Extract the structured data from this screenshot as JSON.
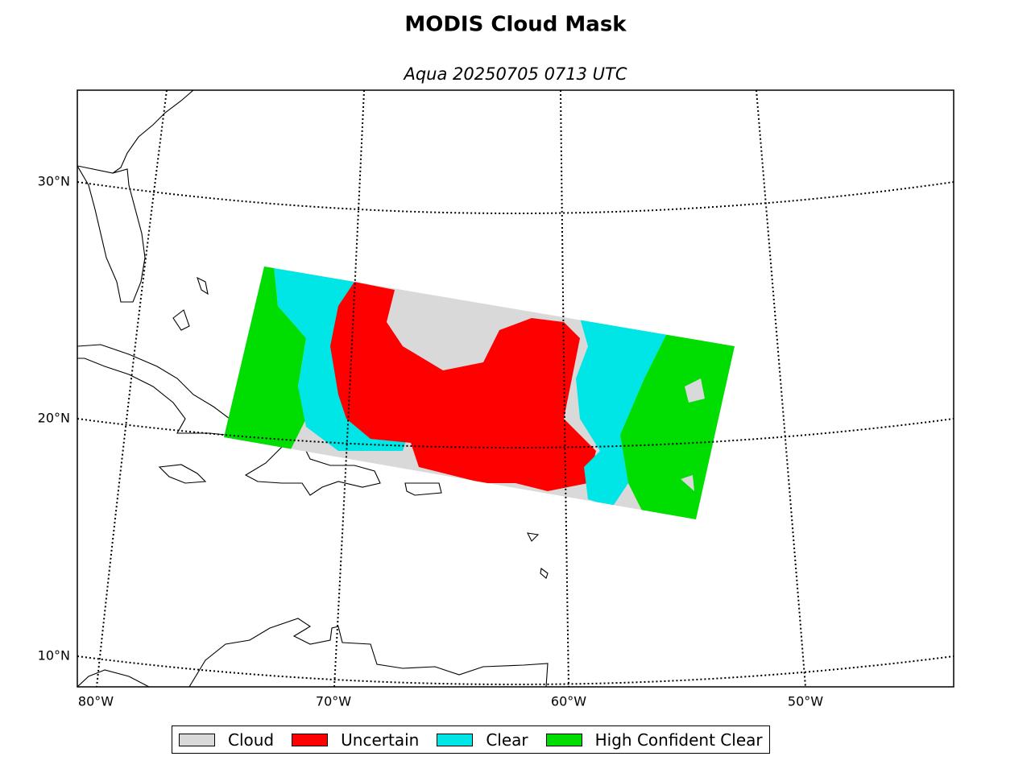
{
  "title": "MODIS Cloud Mask",
  "subtitle": "Aqua 20250705 0713 UTC",
  "latitude_labels": [
    "30°N",
    "20°N",
    "10°N"
  ],
  "longitude_labels": [
    "80°W",
    "70°W",
    "60°W",
    "50°W"
  ],
  "legend": [
    {
      "label": "Cloud",
      "color": "#d9d9d9"
    },
    {
      "label": "Uncertain",
      "color": "#ff0000"
    },
    {
      "label": "Clear",
      "color": "#00e5e5"
    },
    {
      "label": "High Confident Clear",
      "color": "#00dd00"
    }
  ]
}
